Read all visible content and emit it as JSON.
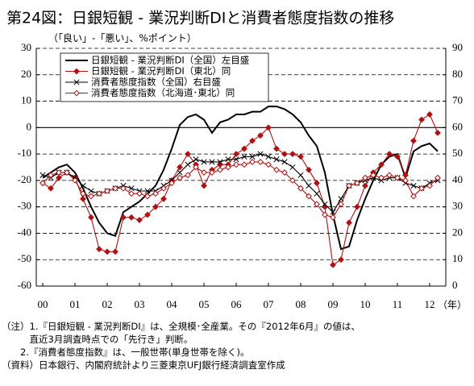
{
  "chart_data": {
    "type": "line",
    "title": "第24図：日銀短観 - 業況判断DIと消費者態度指数の推移",
    "subtitle": "（「良い」-「悪い」、%ポイント）",
    "xlabel": "（年）",
    "x": [
      2000,
      2000.25,
      2000.5,
      2000.75,
      2001,
      2001.25,
      2001.5,
      2001.75,
      2002,
      2002.25,
      2002.5,
      2002.75,
      2003,
      2003.25,
      2003.5,
      2003.75,
      2004,
      2004.25,
      2004.5,
      2004.75,
      2005,
      2005.25,
      2005.5,
      2005.75,
      2006,
      2006.25,
      2006.5,
      2006.75,
      2007,
      2007.25,
      2007.5,
      2007.75,
      2008,
      2008.25,
      2008.5,
      2008.75,
      2009,
      2009.25,
      2009.5,
      2009.75,
      2010,
      2010.25,
      2010.5,
      2010.75,
      2011,
      2011.25,
      2011.5,
      2011.75,
      2012,
      2012.25
    ],
    "xlim": [
      1999.8,
      2012.5
    ],
    "xticks": [
      {
        "value": 2000,
        "label": "00"
      },
      {
        "value": 2001,
        "label": "01"
      },
      {
        "value": 2002,
        "label": "02"
      },
      {
        "value": 2003,
        "label": "03"
      },
      {
        "value": 2004,
        "label": "04"
      },
      {
        "value": 2005,
        "label": "05"
      },
      {
        "value": 2006,
        "label": "06"
      },
      {
        "value": 2007,
        "label": "07"
      },
      {
        "value": 2008,
        "label": "08"
      },
      {
        "value": 2009,
        "label": "09"
      },
      {
        "value": 2010,
        "label": "10"
      },
      {
        "value": 2011,
        "label": "11"
      },
      {
        "value": 2012,
        "label": "12"
      }
    ],
    "ylim": [
      -60,
      30
    ],
    "yticks": [
      -60,
      -50,
      -40,
      -30,
      -20,
      -10,
      0,
      10,
      20,
      30
    ],
    "y2lim": [
      0,
      90
    ],
    "y2ticks": [
      0,
      10,
      20,
      30,
      40,
      50,
      60,
      70,
      80,
      90
    ],
    "grid": true,
    "legend": "upper left",
    "series": [
      {
        "name": "日銀短観 - 業況判断DI（全国）左目盛",
        "color": "#000000",
        "marker": "none",
        "values": [
          -19,
          -17,
          -15,
          -14,
          -17,
          -23,
          -30,
          -36,
          -40,
          -41,
          -32,
          -30,
          -28,
          -25,
          -22,
          -16,
          -8,
          1,
          4,
          5,
          3,
          -2,
          2,
          3,
          5,
          5,
          6,
          6,
          8,
          8,
          7,
          5,
          2,
          -3,
          -7,
          -17,
          -33,
          -46,
          -45,
          -35,
          -27,
          -20,
          -14,
          -11,
          -10,
          -19,
          -9,
          -7,
          -6,
          -9
        ]
      },
      {
        "name": "日銀短観 - 業況判断DI（東北）同",
        "color": "#b01010",
        "marker": "diamond",
        "values": [
          -21,
          -23,
          -19,
          -17,
          -19,
          -27,
          -34,
          -46,
          -47,
          -47,
          -34,
          -34,
          -35,
          -33,
          -30,
          -27,
          -20,
          -15,
          -10,
          -14,
          -22,
          -16,
          -14,
          -14,
          -10,
          -8,
          -5,
          -3,
          0,
          -8,
          -10,
          -10,
          -11,
          -16,
          -21,
          -30,
          -52,
          -50,
          -36,
          -30,
          -22,
          -17,
          -14,
          -10,
          -11,
          -18,
          -5,
          3,
          5,
          -2
        ]
      },
      {
        "name": "消費者態度指数（全国）右目盛",
        "color": "#000000",
        "marker": "x",
        "axis": "y2",
        "values": [
          42,
          41,
          43,
          43,
          41,
          38,
          36,
          35,
          36,
          37,
          38,
          37,
          36,
          36,
          36,
          38,
          40,
          43,
          46,
          48,
          47,
          47,
          47,
          48,
          48,
          49,
          49,
          50,
          49,
          48,
          47,
          45,
          42,
          38,
          35,
          31,
          28,
          33,
          38,
          39,
          40,
          41,
          40,
          41,
          41,
          39,
          38,
          37,
          39,
          40
        ]
      },
      {
        "name": "消費者態度指数（北海道･東北）同",
        "color": "#b01010",
        "marker": "diamond-open",
        "axis": "y2",
        "values": [
          39,
          42,
          43,
          43,
          40,
          35,
          34,
          35,
          36,
          37,
          37,
          35,
          35,
          34,
          35,
          37,
          39,
          41,
          42,
          45,
          43,
          43,
          44,
          45,
          46,
          46,
          47,
          47,
          46,
          44,
          43,
          40,
          37,
          34,
          31,
          27,
          26,
          31,
          38,
          39,
          41,
          42,
          41,
          42,
          41,
          40,
          34,
          37,
          38,
          41
        ]
      }
    ],
    "notes": [
      "（注）1.『日銀短観 - 業況判断DI』は、全規模･全産業。その『2012年6月』の値は、",
      "　　　直近3月調査時点での「先行き」判断。",
      "　　2.『消費者態度指数』は、一般世帯(単身世帯を除く)。",
      "（資料）日本銀行、内閣府統計より三菱東京UFJ銀行経済調査室作成"
    ]
  }
}
